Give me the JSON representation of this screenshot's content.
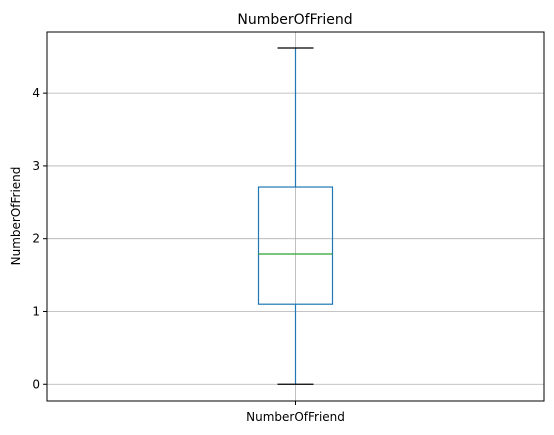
{
  "chart_data": {
    "type": "box",
    "title": "NumberOfFriend",
    "ylabel": "NumberOfFriend",
    "xlabel": "",
    "categories": [
      "NumberOfFriend"
    ],
    "ylim": [
      -0.23,
      4.84
    ],
    "yticks": [
      0,
      1,
      2,
      3,
      4
    ],
    "grid": true,
    "box": {
      "whisker_low": 0.0,
      "q1": 1.1,
      "median": 1.79,
      "q3": 2.71,
      "whisker_high": 4.62
    },
    "colors": {
      "box": "#1f77b4",
      "median": "#2ca02c",
      "caps": "#000000",
      "grid": "#b0b0b0"
    }
  }
}
